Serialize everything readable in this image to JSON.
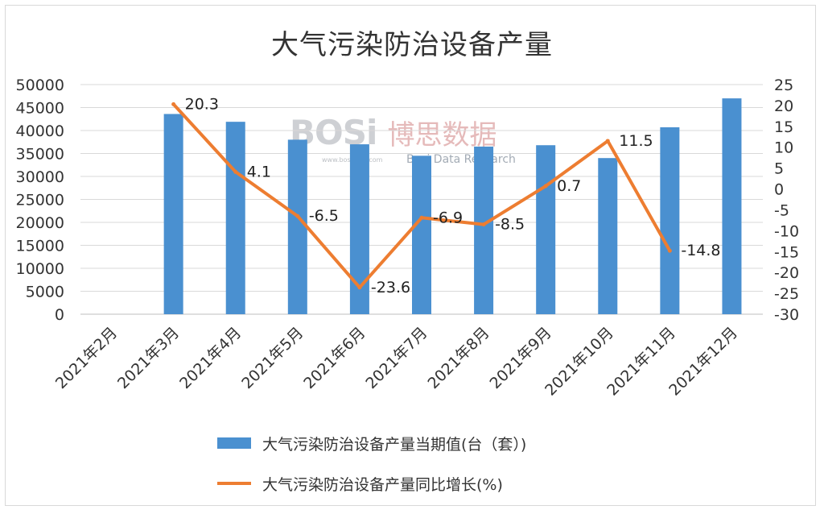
{
  "chart_data": {
    "type": "bar+line",
    "title": "大气污染防治设备产量",
    "categories": [
      "2021年2月",
      "2021年3月",
      "2021年4月",
      "2021年5月",
      "2021年6月",
      "2021年7月",
      "2021年8月",
      "2021年9月",
      "2021年10月",
      "2021年11月",
      "2021年12月"
    ],
    "series": [
      {
        "name": "大气污染防治设备产量当期值(台（套）)",
        "type": "bar",
        "axis": "left",
        "color": "#4a90d0",
        "values": [
          null,
          43600,
          41900,
          38000,
          37000,
          34500,
          36500,
          36800,
          34000,
          40700,
          47000
        ]
      },
      {
        "name": "大气污染防治设备产量同比增长(%)",
        "type": "line",
        "axis": "right",
        "color": "#ed7d31",
        "values": [
          null,
          20.3,
          4.1,
          -6.5,
          -23.6,
          -6.9,
          -8.5,
          0.7,
          11.5,
          -14.8,
          null
        ],
        "labels": [
          "",
          "20.3",
          "4.1",
          "-6.5",
          "-23.6",
          "-6.9",
          "-8.5",
          "0.7",
          "11.5",
          "-14.8",
          ""
        ]
      }
    ],
    "y_left": {
      "min": 0,
      "max": 50000,
      "ticks": [
        "0",
        "5000",
        "10000",
        "15000",
        "20000",
        "25000",
        "30000",
        "35000",
        "40000",
        "45000",
        "50000"
      ]
    },
    "y_right": {
      "min": -30,
      "max": 25,
      "ticks": [
        "-30",
        "-25",
        "-20",
        "-15",
        "-10",
        "-5",
        "0",
        "5",
        "10",
        "15",
        "20",
        "25"
      ]
    },
    "grid": true,
    "legend": "bottom"
  },
  "watermark": {
    "logo": "BOSi",
    "cn": "博思数据",
    "en": "Bosi Data Research",
    "small": "www.bosidata.com"
  }
}
